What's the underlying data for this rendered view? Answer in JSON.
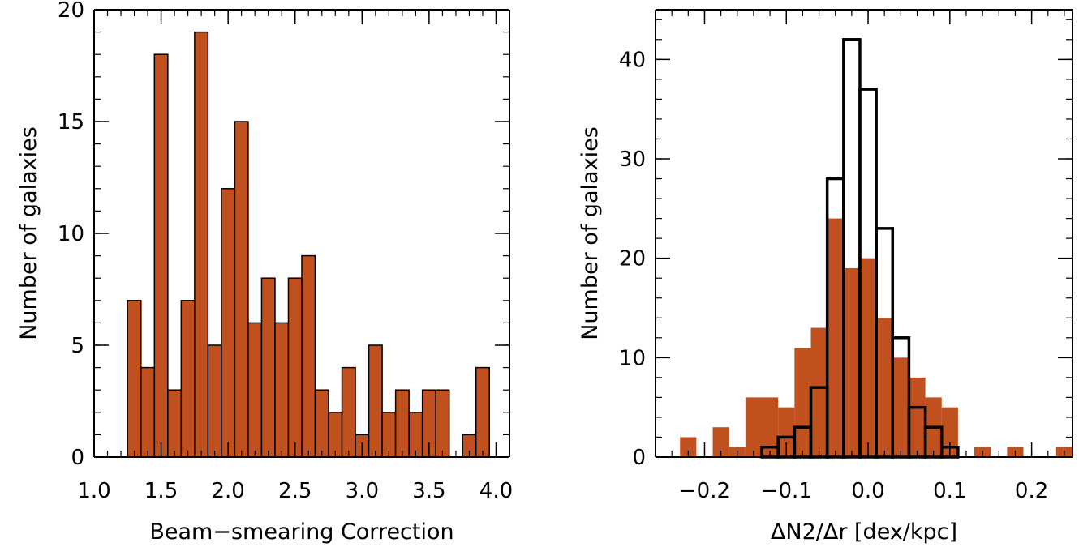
{
  "colors": {
    "bar_fill": "#c0501e",
    "bar_edge": "#000000",
    "axes": "#000000",
    "background": "#ffffff"
  },
  "chart_data": [
    {
      "type": "bar",
      "xlabel": "Beam−smearing Correction",
      "ylabel": "Number of galaxies",
      "xlim": [
        1.0,
        4.1
      ],
      "ylim": [
        0,
        20
      ],
      "xticks": [
        1.0,
        1.5,
        2.0,
        2.5,
        3.0,
        3.5,
        4.0
      ],
      "xtick_labels": [
        "1.0",
        "1.5",
        "2.0",
        "2.5",
        "3.0",
        "3.5",
        "4.0"
      ],
      "yticks": [
        0,
        5,
        10,
        15,
        20
      ],
      "ytick_labels": [
        "0",
        "5",
        "10",
        "15",
        "20"
      ],
      "bin_width": 0.1,
      "series": [
        {
          "bin_starts": [
            1.25,
            1.35,
            1.45,
            1.55,
            1.65,
            1.75,
            1.85,
            1.95,
            2.05,
            2.15,
            2.25,
            2.35,
            2.45,
            2.55,
            2.65,
            2.75,
            2.85,
            2.95,
            3.05,
            3.15,
            3.25,
            3.35,
            3.45,
            3.55,
            3.65,
            3.75,
            3.85
          ],
          "values": [
            7,
            4,
            18,
            3,
            7,
            19,
            5,
            12,
            15,
            6,
            8,
            6,
            8,
            9,
            3,
            2,
            4,
            1,
            5,
            2,
            3,
            2,
            3,
            3,
            0,
            1,
            4
          ]
        }
      ]
    },
    {
      "type": "bar",
      "xlabel": "ΔN2/Δr [dex/kpc]",
      "ylabel": "Number of galaxies",
      "xlim": [
        -0.26,
        0.25
      ],
      "ylim": [
        0,
        45
      ],
      "xticks": [
        -0.2,
        -0.1,
        0.0,
        0.1,
        0.2
      ],
      "xtick_labels": [
        "−0.2",
        "−0.1",
        "0.0",
        "0.1",
        "0.2"
      ],
      "yticks": [
        0,
        10,
        20,
        30,
        40
      ],
      "ytick_labels": [
        "0",
        "10",
        "20",
        "30",
        "40"
      ],
      "bin_width": 0.02,
      "series": [
        {
          "style": "filled",
          "bin_starts": [
            -0.23,
            -0.21,
            -0.19,
            -0.17,
            -0.15,
            -0.13,
            -0.11,
            -0.09,
            -0.07,
            -0.05,
            -0.03,
            -0.01,
            0.01,
            0.03,
            0.05,
            0.07,
            0.09,
            0.11,
            0.13,
            0.15,
            0.17,
            0.19,
            0.21,
            0.23
          ],
          "values": [
            2,
            0,
            3,
            1,
            6,
            6,
            5,
            11,
            13,
            24,
            19,
            20,
            14,
            10,
            8,
            6,
            5,
            0,
            1,
            0,
            1,
            0,
            0,
            1
          ]
        },
        {
          "style": "outline",
          "bin_starts": [
            -0.13,
            -0.11,
            -0.09,
            -0.07,
            -0.05,
            -0.03,
            -0.01,
            0.01,
            0.03,
            0.05,
            0.07,
            0.09
          ],
          "values": [
            1,
            2,
            3,
            7,
            28,
            42,
            37,
            23,
            12,
            5,
            3,
            1
          ]
        }
      ]
    }
  ]
}
